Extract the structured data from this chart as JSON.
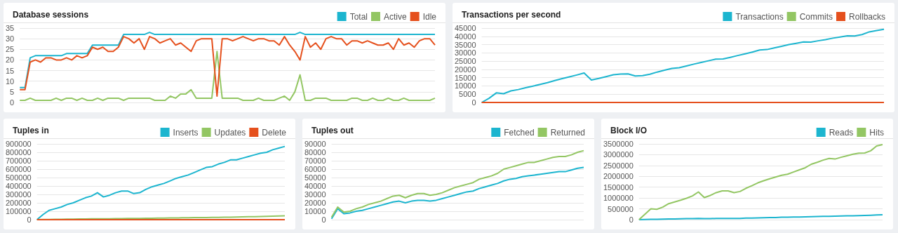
{
  "chart_data": [
    {
      "type": "line",
      "title": "Database sessions",
      "legend": "top right",
      "grid": "y",
      "marker": "none",
      "tick_labels": "y",
      "ylim": [
        0,
        35
      ],
      "yticks": [
        0,
        5,
        10,
        15,
        20,
        25,
        30,
        35
      ],
      "categories": [
        null,
        null,
        null,
        null,
        null,
        null,
        null,
        null,
        null,
        null,
        null,
        null,
        null,
        null,
        null,
        null,
        null,
        null,
        null,
        null,
        null,
        null,
        null,
        null,
        null,
        null,
        null,
        null,
        null,
        null,
        null,
        null,
        null,
        null,
        null,
        null,
        null,
        null,
        null,
        null,
        null,
        null,
        null,
        null,
        null,
        null,
        null,
        null,
        null,
        null,
        null,
        null,
        null,
        null,
        null,
        null,
        null,
        null,
        null,
        null,
        null,
        null,
        null,
        null,
        null,
        null,
        null,
        null,
        null,
        null,
        null,
        null,
        null,
        null,
        null,
        null,
        null,
        null,
        null,
        null,
        null
      ],
      "series": [
        {
          "name": "Total",
          "color": "#1cb5cf",
          "values": [
            7,
            7,
            21,
            22,
            22,
            22,
            22,
            22,
            22,
            23,
            23,
            23,
            23,
            23,
            27,
            27,
            27,
            27,
            27,
            27,
            32,
            32,
            32,
            32,
            32,
            33,
            32,
            32,
            32,
            32,
            32,
            32,
            32,
            32,
            32,
            32,
            32,
            32,
            32,
            32,
            32,
            32,
            32,
            32,
            32,
            32,
            32,
            32,
            32,
            32,
            32,
            32,
            32,
            32,
            33,
            32,
            32,
            32,
            32,
            32,
            32,
            32,
            32,
            32,
            32,
            32,
            32,
            32,
            32,
            32,
            32,
            32,
            32,
            32,
            32,
            32,
            32,
            32,
            32,
            32,
            32
          ]
        },
        {
          "name": "Active",
          "color": "#93c663",
          "values": [
            1,
            1,
            2,
            1,
            1,
            1,
            1,
            2,
            1,
            2,
            2,
            1,
            2,
            1,
            1,
            2,
            1,
            2,
            2,
            2,
            1,
            2,
            2,
            2,
            2,
            2,
            1,
            1,
            1,
            3,
            2,
            4,
            4,
            6,
            2,
            2,
            2,
            2,
            24,
            2,
            2,
            2,
            2,
            1,
            1,
            1,
            2,
            1,
            1,
            1,
            2,
            3,
            1,
            5,
            13,
            1,
            1,
            2,
            2,
            2,
            1,
            1,
            1,
            1,
            2,
            2,
            1,
            1,
            2,
            1,
            1,
            2,
            1,
            1,
            2,
            1,
            1,
            1,
            1,
            1,
            2
          ]
        },
        {
          "name": "Idle",
          "color": "#e5501d",
          "values": [
            6,
            6,
            19,
            20,
            19,
            21,
            21,
            20,
            20,
            21,
            20,
            22,
            21,
            22,
            26,
            25,
            26,
            24,
            24,
            26,
            31,
            30,
            28,
            30,
            25,
            31,
            30,
            28,
            29,
            30,
            27,
            28,
            26,
            24,
            29,
            30,
            30,
            30,
            3,
            30,
            30,
            29,
            30,
            31,
            30,
            29,
            30,
            30,
            29,
            29,
            27,
            31,
            27,
            24,
            20,
            31,
            26,
            28,
            25,
            30,
            31,
            30,
            30,
            27,
            29,
            29,
            28,
            29,
            28,
            27,
            27,
            28,
            25,
            30,
            27,
            28,
            26,
            29,
            30,
            30,
            27
          ]
        }
      ]
    },
    {
      "type": "line",
      "title": "Transactions per second",
      "legend": "top right",
      "grid": "y",
      "marker": "none",
      "tick_labels": "y",
      "ylim": [
        0,
        45000
      ],
      "yticks": [
        0,
        5000,
        10000,
        15000,
        20000,
        25000,
        30000,
        35000,
        40000,
        45000
      ],
      "categories": [
        null,
        null,
        null,
        null,
        null,
        null,
        null,
        null,
        null,
        null,
        null,
        null,
        null,
        null,
        null,
        null,
        null,
        null,
        null,
        null,
        null,
        null,
        null,
        null,
        null,
        null,
        null,
        null,
        null,
        null,
        null,
        null,
        null,
        null,
        null,
        null,
        null,
        null,
        null,
        null,
        null,
        null,
        null,
        null,
        null,
        null,
        null,
        null,
        null,
        null,
        null,
        null,
        null,
        null,
        null,
        null
      ],
      "series": [
        {
          "name": "Transactions",
          "color": "#1cb5cf",
          "values": [
            0,
            2500,
            5800,
            5300,
            7000,
            7800,
            8900,
            9900,
            10900,
            12000,
            13300,
            14400,
            15500,
            16600,
            17800,
            13600,
            14500,
            15600,
            16800,
            17200,
            17300,
            16000,
            16200,
            17100,
            18400,
            19500,
            20600,
            21000,
            22100,
            23200,
            24200,
            25200,
            26200,
            26300,
            27300,
            28400,
            29400,
            30500,
            31700,
            32000,
            33000,
            34000,
            35000,
            35800,
            36600,
            36500,
            37300,
            38000,
            38900,
            39600,
            40300,
            40200,
            41100,
            42700,
            43500,
            44300
          ]
        },
        {
          "name": "Commits",
          "color": "#93c663",
          "values": [
            null,
            null,
            null,
            null,
            null,
            null,
            null,
            null,
            null,
            null,
            null,
            null,
            null,
            null,
            null,
            null,
            null,
            null,
            null,
            null,
            null,
            null,
            null,
            null,
            null,
            null,
            null,
            null,
            null,
            null,
            null,
            null,
            null,
            null,
            null,
            null,
            null,
            null,
            null,
            null,
            null,
            null,
            null,
            null,
            null,
            null,
            null,
            null,
            null,
            null,
            null,
            null,
            null,
            null,
            null,
            null
          ]
        },
        {
          "name": "Rollbacks",
          "color": "#e5501d",
          "values": [
            0,
            0,
            0,
            0,
            0,
            0,
            0,
            0,
            0,
            0,
            0,
            0,
            0,
            0,
            0,
            0,
            0,
            0,
            0,
            0,
            0,
            0,
            0,
            0,
            0,
            0,
            0,
            0,
            0,
            0,
            0,
            0,
            0,
            0,
            0,
            0,
            0,
            0,
            0,
            0,
            0,
            0,
            0,
            0,
            0,
            0,
            0,
            0,
            0,
            0,
            0,
            0,
            0,
            0,
            0,
            0
          ]
        }
      ]
    },
    {
      "type": "line",
      "title": "Tuples in",
      "legend": "top right",
      "grid": "y",
      "marker": "none",
      "tick_labels": "y",
      "ylim": [
        0,
        900000
      ],
      "yticks": [
        0,
        100000,
        200000,
        300000,
        400000,
        500000,
        600000,
        700000,
        800000,
        900000
      ],
      "categories": [
        null,
        null,
        null,
        null,
        null,
        null,
        null,
        null,
        null,
        null,
        null,
        null,
        null,
        null,
        null,
        null,
        null,
        null,
        null,
        null,
        null,
        null,
        null,
        null,
        null,
        null,
        null,
        null,
        null,
        null,
        null,
        null,
        null,
        null,
        null,
        null,
        null,
        null,
        null,
        null,
        null,
        null
      ],
      "series": [
        {
          "name": "Inserts",
          "color": "#1cb5cf",
          "values": [
            0,
            60000,
            110000,
            130000,
            150000,
            180000,
            200000,
            230000,
            260000,
            280000,
            320000,
            270000,
            290000,
            320000,
            340000,
            340000,
            310000,
            320000,
            360000,
            390000,
            410000,
            430000,
            460000,
            490000,
            510000,
            530000,
            560000,
            590000,
            620000,
            630000,
            660000,
            680000,
            710000,
            710000,
            730000,
            750000,
            770000,
            790000,
            800000,
            830000,
            850000,
            870000
          ]
        },
        {
          "name": "Updates",
          "color": "#93c663",
          "values": [
            0,
            2000,
            3000,
            4000,
            5000,
            6000,
            7000,
            8000,
            9000,
            10000,
            11000,
            10000,
            11000,
            12000,
            13000,
            14000,
            14000,
            15000,
            16000,
            17000,
            18000,
            19000,
            20000,
            21000,
            22000,
            23000,
            24000,
            25000,
            26000,
            27000,
            28000,
            29000,
            30000,
            32000,
            33000,
            35000,
            36000,
            38000,
            40000,
            42000,
            44000,
            45000
          ]
        },
        {
          "name": "Delete",
          "color": "#e5501d",
          "values": [
            0,
            0,
            0,
            0,
            0,
            0,
            0,
            0,
            0,
            0,
            0,
            0,
            0,
            0,
            0,
            0,
            0,
            0,
            0,
            0,
            0,
            0,
            0,
            0,
            0,
            0,
            0,
            0,
            0,
            0,
            0,
            0,
            0,
            0,
            0,
            0,
            0,
            0,
            0,
            0,
            0,
            0
          ]
        }
      ]
    },
    {
      "type": "line",
      "title": "Tuples out",
      "legend": "top right",
      "grid": "y",
      "marker": "none",
      "tick_labels": "y",
      "ylim": [
        0,
        90000
      ],
      "yticks": [
        0,
        10000,
        20000,
        30000,
        40000,
        50000,
        60000,
        70000,
        80000,
        90000
      ],
      "categories": [
        null,
        null,
        null,
        null,
        null,
        null,
        null,
        null,
        null,
        null,
        null,
        null,
        null,
        null,
        null,
        null,
        null,
        null,
        null,
        null,
        null,
        null,
        null,
        null,
        null,
        null,
        null,
        null,
        null,
        null,
        null,
        null,
        null,
        null,
        null,
        null,
        null,
        null,
        null,
        null,
        null,
        null
      ],
      "series": [
        {
          "name": "Fetched",
          "color": "#1cb5cf",
          "values": [
            1000,
            13000,
            7000,
            8000,
            10000,
            11000,
            13000,
            15000,
            17000,
            19000,
            21000,
            22000,
            20000,
            22000,
            23000,
            23000,
            22000,
            23000,
            25000,
            27000,
            29000,
            31000,
            33000,
            34000,
            37000,
            39000,
            41000,
            43000,
            46000,
            48000,
            49000,
            51000,
            52000,
            53000,
            54000,
            55000,
            56000,
            57000,
            57000,
            59000,
            61000,
            62000
          ]
        },
        {
          "name": "Returned",
          "color": "#93c663",
          "values": [
            3000,
            15000,
            9000,
            10000,
            13000,
            15000,
            18000,
            20000,
            22000,
            25000,
            28000,
            29000,
            26000,
            29000,
            31000,
            31000,
            29000,
            30000,
            32000,
            35000,
            38000,
            40000,
            42000,
            44000,
            48000,
            50000,
            52000,
            55000,
            60000,
            62000,
            64000,
            66000,
            68000,
            68000,
            70000,
            72000,
            74000,
            75000,
            75000,
            77000,
            80000,
            82000
          ]
        }
      ]
    },
    {
      "type": "line",
      "title": "Block I/O",
      "legend": "top right",
      "grid": "y",
      "marker": "none",
      "tick_labels": "y",
      "ylim": [
        0,
        3500000
      ],
      "yticks": [
        0,
        500000,
        1000000,
        1500000,
        2000000,
        2500000,
        3000000,
        3500000
      ],
      "categories": [
        null,
        null,
        null,
        null,
        null,
        null,
        null,
        null,
        null,
        null,
        null,
        null,
        null,
        null,
        null,
        null,
        null,
        null,
        null,
        null,
        null,
        null,
        null,
        null,
        null,
        null,
        null,
        null,
        null,
        null,
        null,
        null,
        null,
        null,
        null,
        null,
        null,
        null,
        null,
        null,
        null,
        null
      ],
      "series": [
        {
          "name": "Reads",
          "color": "#1cb5cf",
          "values": [
            0,
            10000,
            15000,
            20000,
            25000,
            30000,
            35000,
            40000,
            45000,
            50000,
            55000,
            45000,
            50000,
            55000,
            60000,
            60000,
            55000,
            60000,
            70000,
            75000,
            80000,
            90000,
            95000,
            100000,
            110000,
            115000,
            120000,
            125000,
            130000,
            140000,
            145000,
            150000,
            155000,
            160000,
            170000,
            175000,
            180000,
            190000,
            195000,
            205000,
            215000,
            230000
          ]
        },
        {
          "name": "Hits",
          "color": "#93c663",
          "values": [
            0,
            250000,
            500000,
            480000,
            580000,
            740000,
            820000,
            900000,
            990000,
            1100000,
            1280000,
            1020000,
            1120000,
            1250000,
            1330000,
            1330000,
            1250000,
            1300000,
            1450000,
            1570000,
            1700000,
            1800000,
            1890000,
            1970000,
            2050000,
            2100000,
            2200000,
            2300000,
            2400000,
            2560000,
            2650000,
            2750000,
            2830000,
            2800000,
            2880000,
            2950000,
            3020000,
            3070000,
            3080000,
            3180000,
            3400000,
            3470000
          ]
        }
      ]
    }
  ]
}
